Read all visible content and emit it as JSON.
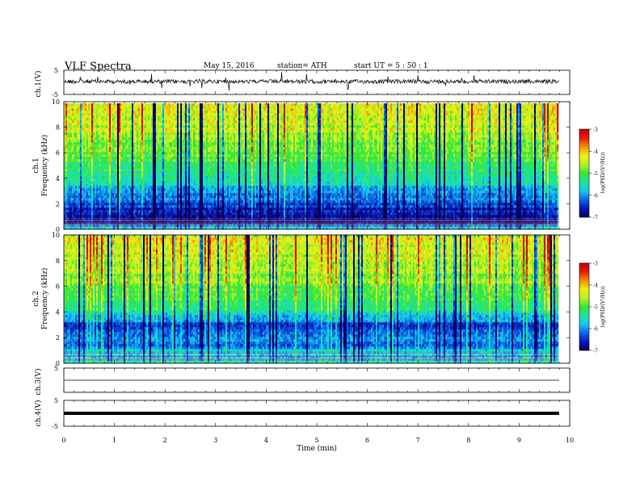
{
  "header": {
    "title": "VLF  Spectra",
    "date": "May 15, 2016",
    "station": "station= ATH",
    "start": "start  UT  =   5  : 50 : 1"
  },
  "colors": {
    "colormap": [
      "#08005a",
      "#0a14b4",
      "#0a64e6",
      "#14c8f0",
      "#1ee6a0",
      "#32e632",
      "#b4f028",
      "#f0f014",
      "#f0960a",
      "#e61e0a",
      "#c80000"
    ],
    "high_band_bias": "#ff1e00"
  },
  "colorbar": {
    "label": "log(PSD/(V²/Hz))",
    "ticks": [
      "-3",
      "-4",
      "-5",
      "-6",
      "-7"
    ]
  },
  "chart_data": [
    {
      "type": "line",
      "name": "ch1-waveform",
      "ylabel": "ch.1(V)",
      "yticks": [
        "5",
        "-5"
      ],
      "ylim": [
        -5,
        5
      ],
      "baseline": 0.0,
      "noise_amplitude": 0.5
    },
    {
      "type": "heatmap",
      "name": "ch1-spectrogram",
      "ylabel_channel": "ch.1",
      "ylabel": "Frequency  (kHz)",
      "yticks": [
        "10",
        "8",
        "6",
        "4",
        "2",
        "0"
      ],
      "ylim": [
        0,
        10
      ],
      "xlim": [
        0,
        9.8
      ],
      "zlim": [
        -7,
        -3
      ],
      "scale": "log10 PSD",
      "profile_khz": [
        0,
        0.5,
        1,
        1.5,
        2,
        3,
        4,
        5,
        6,
        7,
        8,
        9,
        10
      ],
      "profile_log_psd": [
        -5.5,
        -6.6,
        -6.8,
        -6.6,
        -6.3,
        -5.9,
        -5.5,
        -5.2,
        -4.9,
        -4.7,
        -4.5,
        -4.4,
        -4.3
      ]
    },
    {
      "type": "heatmap",
      "name": "ch2-spectrogram",
      "ylabel_channel": "ch.2",
      "ylabel": "Frequency  (kHz)",
      "yticks": [
        "10",
        "8",
        "6",
        "4",
        "2",
        "0"
      ],
      "ylim": [
        0,
        10
      ],
      "xlim": [
        0,
        9.8
      ],
      "zlim": [
        -7,
        -3
      ],
      "scale": "log10 PSD",
      "profile_khz": [
        0,
        0.5,
        1,
        1.5,
        2,
        3,
        4,
        5,
        6,
        7,
        8,
        9,
        10
      ],
      "profile_log_psd": [
        -5.4,
        -5.8,
        -5.6,
        -6.3,
        -6.0,
        -6.4,
        -5.4,
        -5.0,
        -4.8,
        -4.7,
        -4.5,
        -4.4,
        -4.3
      ]
    },
    {
      "type": "line",
      "name": "ch3-waveform",
      "ylabel": "ch.3(V)",
      "yticks": [
        "5"
      ],
      "ylim": [
        -5,
        5
      ],
      "baseline": 0.0
    },
    {
      "type": "line",
      "name": "ch4-waveform",
      "ylabel": "ch.4(V)",
      "yticks": [
        "5",
        "-5"
      ],
      "ylim": [
        -5,
        5
      ],
      "baseline": 0.0
    }
  ],
  "xaxis": {
    "label": "Time  (min)",
    "ticks": [
      "0",
      "1",
      "2",
      "3",
      "4",
      "5",
      "6",
      "7",
      "8",
      "9",
      "10"
    ],
    "xlim": [
      0,
      10
    ]
  }
}
